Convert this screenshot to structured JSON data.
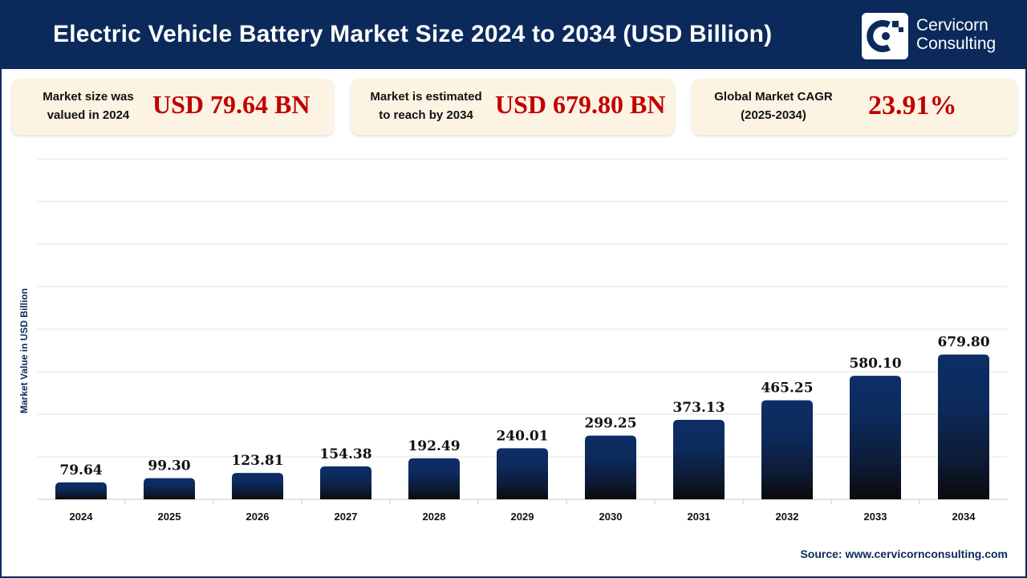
{
  "header": {
    "title": "Electric Vehicle Battery Market Size 2024 to 2034 (USD Billion)"
  },
  "logo": {
    "icon": "cervicorn-logo-icon",
    "line1": "Cervicorn",
    "line2": "Consulting"
  },
  "stats": [
    {
      "label_line1": "Market size was",
      "label_line2": "valued in 2024",
      "value": "USD 79.64 BN"
    },
    {
      "label_line1": "Market is estimated",
      "label_line2": "to reach by 2034",
      "value": "USD 679.80 BN"
    },
    {
      "label_line1": "Global Market CAGR",
      "label_line2": "(2025-2034)",
      "value": "23.91%"
    }
  ],
  "chart_data": {
    "type": "bar",
    "title": "Electric Vehicle Battery Market Size 2024 to 2034 (USD Billion)",
    "xlabel": "",
    "ylabel": "Market Value in USD Billion",
    "categories": [
      "2024",
      "2025",
      "2026",
      "2027",
      "2028",
      "2029",
      "2030",
      "2031",
      "2032",
      "2033",
      "2034"
    ],
    "values": [
      79.64,
      99.3,
      123.81,
      154.38,
      192.49,
      240.01,
      299.25,
      373.13,
      465.25,
      580.1,
      679.8
    ],
    "value_labels": [
      "79.64",
      "99.30",
      "123.81",
      "154.38",
      "192.49",
      "240.01",
      "299.25",
      "373.13",
      "465.25",
      "580.10",
      "679.80"
    ],
    "ylim": [
      0,
      800
    ],
    "grid": true,
    "legend": "none"
  },
  "colors": {
    "header_bg": "#0b2a5b",
    "bar_top": "#0d2e66",
    "bar_bottom": "#0a0a0a",
    "value_red": "#c00000",
    "grid": "#e3e3e3"
  },
  "source": "Source: www.cervicornconsulting.com"
}
